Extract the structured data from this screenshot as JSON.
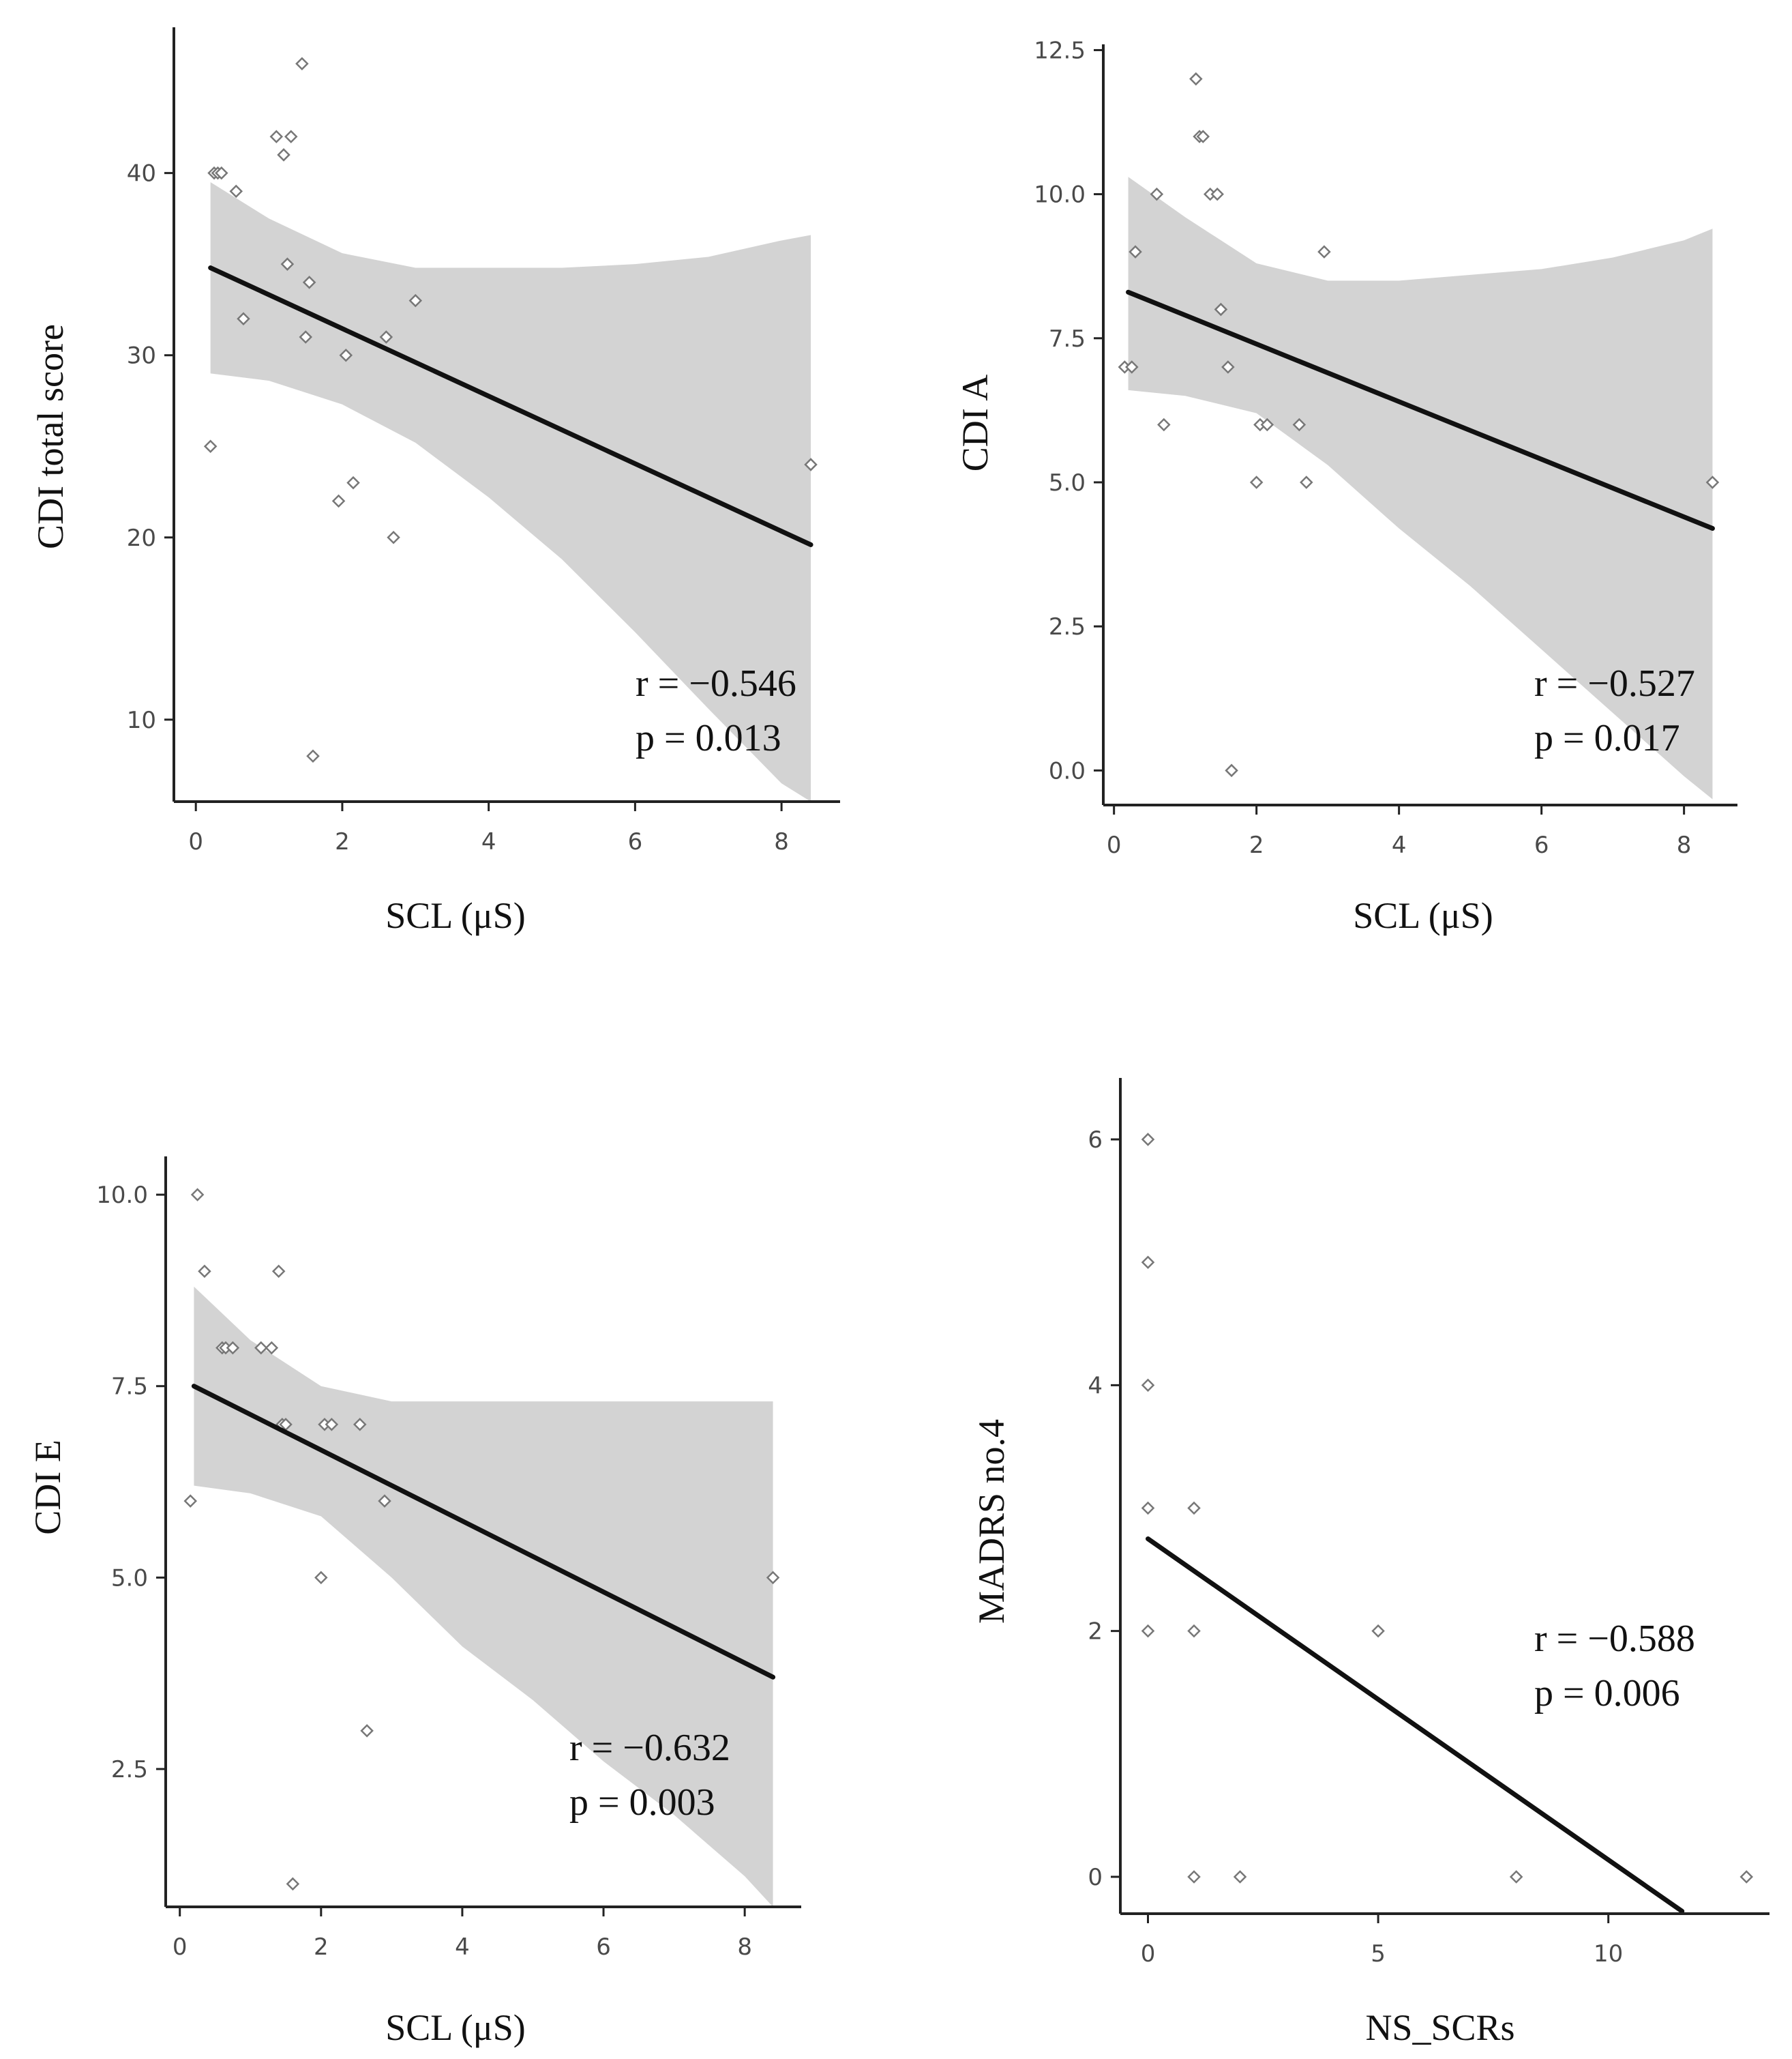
{
  "chart_data": [
    {
      "type": "scatter",
      "panel": "top-left",
      "xlabel": "SCL (μS)",
      "ylabel": "CDI total score",
      "xlim": [
        -0.3,
        8.8
      ],
      "ylim": [
        5.5,
        48
      ],
      "xticks": [
        "0",
        "2",
        "4",
        "6",
        "8"
      ],
      "yticks": [
        "10",
        "20",
        "30",
        "40"
      ],
      "points": [
        [
          0.2,
          25
        ],
        [
          0.25,
          40
        ],
        [
          0.3,
          40
        ],
        [
          0.35,
          40
        ],
        [
          0.55,
          39
        ],
        [
          0.65,
          32
        ],
        [
          1.1,
          42
        ],
        [
          1.2,
          41
        ],
        [
          1.25,
          35
        ],
        [
          1.3,
          42
        ],
        [
          1.45,
          46
        ],
        [
          1.5,
          31
        ],
        [
          1.55,
          34
        ],
        [
          1.6,
          8
        ],
        [
          1.95,
          22
        ],
        [
          2.05,
          30
        ],
        [
          2.15,
          23
        ],
        [
          2.6,
          31
        ],
        [
          2.7,
          20
        ],
        [
          3.0,
          33
        ],
        [
          8.4,
          24
        ]
      ],
      "fit": {
        "x": [
          0.2,
          8.4
        ],
        "y": [
          34.8,
          19.6
        ]
      },
      "band": {
        "x": [
          0.2,
          1.0,
          2.0,
          3.0,
          4.0,
          5.0,
          6.0,
          7.0,
          8.0,
          8.4
        ],
        "upper": [
          39.5,
          37.5,
          35.6,
          34.8,
          34.8,
          34.8,
          35.0,
          35.4,
          36.3,
          36.6
        ],
        "lower": [
          29.0,
          28.6,
          27.3,
          25.2,
          22.2,
          18.8,
          14.8,
          10.6,
          6.5,
          5.5
        ]
      },
      "stats": {
        "r": "r = −0.546",
        "p": "p = 0.013"
      }
    },
    {
      "type": "scatter",
      "panel": "top-right",
      "xlabel": "SCL (μS)",
      "ylabel": "CDI A",
      "xlim": [
        -0.15,
        8.75
      ],
      "ylim": [
        -0.6,
        12.6
      ],
      "xticks": [
        "0",
        "2",
        "4",
        "6",
        "8"
      ],
      "yticks": [
        "0.0",
        "2.5",
        "5.0",
        "7.5",
        "10.0",
        "12.5"
      ],
      "points": [
        [
          0.15,
          7
        ],
        [
          0.25,
          7
        ],
        [
          0.3,
          9
        ],
        [
          0.6,
          10
        ],
        [
          0.7,
          6
        ],
        [
          1.15,
          12
        ],
        [
          1.2,
          11
        ],
        [
          1.25,
          11
        ],
        [
          1.35,
          10
        ],
        [
          1.45,
          10
        ],
        [
          1.5,
          8
        ],
        [
          1.6,
          7
        ],
        [
          1.65,
          0
        ],
        [
          2.0,
          5
        ],
        [
          2.05,
          6
        ],
        [
          2.15,
          6
        ],
        [
          2.6,
          6
        ],
        [
          2.7,
          5
        ],
        [
          2.95,
          9
        ],
        [
          8.4,
          5
        ]
      ],
      "fit": {
        "x": [
          0.2,
          8.4
        ],
        "y": [
          8.3,
          4.2
        ]
      },
      "band": {
        "x": [
          0.2,
          1.0,
          2.0,
          3.0,
          4.0,
          5.0,
          6.0,
          7.0,
          8.0,
          8.4
        ],
        "upper": [
          10.3,
          9.6,
          8.8,
          8.5,
          8.5,
          8.6,
          8.7,
          8.9,
          9.2,
          9.4
        ],
        "lower": [
          6.6,
          6.5,
          6.2,
          5.3,
          4.2,
          3.2,
          2.1,
          1.0,
          -0.1,
          -0.5
        ]
      },
      "stats": {
        "r": "r = −0.527",
        "p": "p = 0.017"
      }
    },
    {
      "type": "scatter",
      "panel": "bottom-left",
      "xlabel": "SCL (μS)",
      "ylabel": "CDI E",
      "xlim": [
        -0.2,
        8.8
      ],
      "ylim": [
        0.7,
        10.5
      ],
      "xticks": [
        "0",
        "2",
        "4",
        "6",
        "8"
      ],
      "yticks": [
        "2.5",
        "5.0",
        "7.5",
        "10.0"
      ],
      "points": [
        [
          0.15,
          6
        ],
        [
          0.25,
          10
        ],
        [
          0.35,
          9
        ],
        [
          0.6,
          8
        ],
        [
          0.65,
          8
        ],
        [
          0.75,
          8
        ],
        [
          1.15,
          8
        ],
        [
          1.3,
          8
        ],
        [
          1.4,
          9
        ],
        [
          1.45,
          7
        ],
        [
          1.5,
          7
        ],
        [
          1.6,
          1
        ],
        [
          2.0,
          5
        ],
        [
          2.05,
          7
        ],
        [
          2.15,
          7
        ],
        [
          2.55,
          7
        ],
        [
          2.65,
          3
        ],
        [
          2.9,
          6
        ],
        [
          8.4,
          5
        ]
      ],
      "fit": {
        "x": [
          0.2,
          8.4
        ],
        "y": [
          7.5,
          3.7
        ]
      },
      "band": {
        "x": [
          0.2,
          1.0,
          2.0,
          3.0,
          4.0,
          5.0,
          6.0,
          7.0,
          8.0,
          8.4
        ],
        "upper": [
          8.8,
          8.1,
          7.5,
          7.3,
          7.3,
          7.3,
          7.3,
          7.3,
          7.3,
          7.3
        ],
        "lower": [
          6.2,
          6.1,
          5.8,
          5.0,
          4.1,
          3.4,
          2.6,
          1.9,
          1.1,
          0.7
        ]
      },
      "stats": {
        "r": "r = −0.632",
        "p": "p = 0.003"
      }
    },
    {
      "type": "scatter",
      "panel": "bottom-right",
      "xlabel": "NS_SCRs",
      "ylabel": "MADRS no.4",
      "xlim": [
        -0.6,
        13.5
      ],
      "ylim": [
        -0.3,
        6.5
      ],
      "xticks": [
        "0",
        "5",
        "10"
      ],
      "yticks": [
        "0",
        "2",
        "4",
        "6"
      ],
      "points": [
        [
          0,
          6
        ],
        [
          0,
          5
        ],
        [
          0,
          4
        ],
        [
          0,
          3
        ],
        [
          0,
          2
        ],
        [
          1,
          3
        ],
        [
          1,
          2
        ],
        [
          1,
          0
        ],
        [
          2,
          0
        ],
        [
          5,
          2
        ],
        [
          8,
          0
        ],
        [
          13,
          0
        ]
      ],
      "fit": {
        "x": [
          0,
          11.6
        ],
        "y": [
          2.75,
          -0.28
        ]
      },
      "band": null,
      "stats": {
        "r": "r = −0.588",
        "p": "p = 0.006"
      }
    }
  ]
}
